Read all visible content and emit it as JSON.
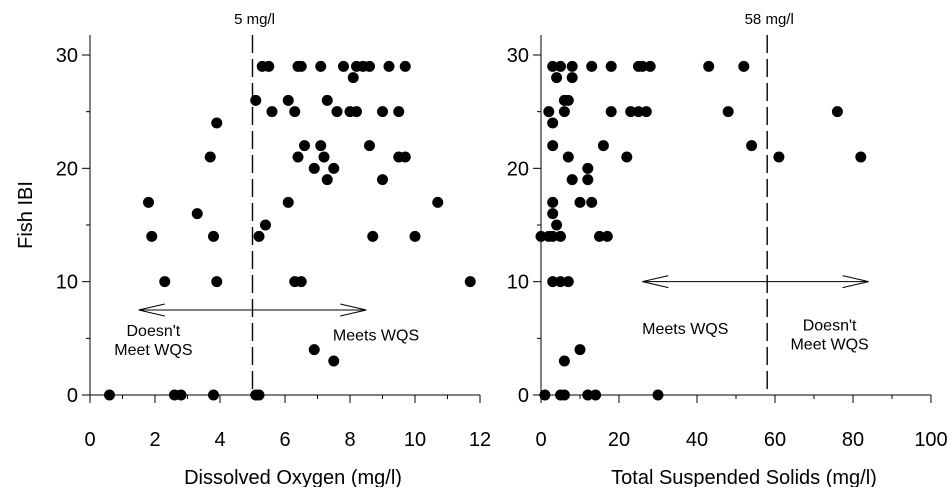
{
  "chart_data": [
    {
      "type": "scatter",
      "xlabel": "Dissolved Oxygen (mg/l)",
      "ylabel": "Fish IBI",
      "xlim": [
        0,
        12
      ],
      "ylim": [
        0,
        30
      ],
      "xticks": [
        "0",
        "2",
        "4",
        "6",
        "8",
        "10",
        "12"
      ],
      "yticks": [
        "0",
        "10",
        "20",
        "30"
      ],
      "threshold": {
        "x": 5,
        "label": "5 mg/l"
      },
      "arrow": {
        "from": 1.5,
        "to": 8.5,
        "y": 7.5
      },
      "annotations": [
        {
          "lines": [
            "Doesn't",
            "Meet WQS"
          ],
          "x": 1.95,
          "y": 5.2
        },
        {
          "lines": [
            "Meets WQS"
          ],
          "x": 8.8,
          "y": 4.8
        }
      ],
      "points": [
        [
          0.6,
          0
        ],
        [
          2.6,
          0
        ],
        [
          2.8,
          0
        ],
        [
          3.8,
          0
        ],
        [
          5.1,
          0
        ],
        [
          5.2,
          0
        ],
        [
          6.9,
          4
        ],
        [
          7.5,
          3
        ],
        [
          2.3,
          10
        ],
        [
          3.9,
          10
        ],
        [
          6.3,
          10
        ],
        [
          6.5,
          10
        ],
        [
          11.7,
          10
        ],
        [
          1.9,
          14
        ],
        [
          3.8,
          14
        ],
        [
          5.2,
          14
        ],
        [
          8.7,
          14
        ],
        [
          10.0,
          14
        ],
        [
          5.4,
          15
        ],
        [
          3.3,
          16
        ],
        [
          1.8,
          17
        ],
        [
          6.1,
          17
        ],
        [
          10.7,
          17
        ],
        [
          7.3,
          19
        ],
        [
          9.0,
          19
        ],
        [
          6.9,
          20
        ],
        [
          7.5,
          20
        ],
        [
          3.7,
          21
        ],
        [
          6.4,
          21
        ],
        [
          7.2,
          21
        ],
        [
          9.5,
          21
        ],
        [
          9.7,
          21
        ],
        [
          6.6,
          22
        ],
        [
          7.1,
          22
        ],
        [
          8.6,
          22
        ],
        [
          3.9,
          24
        ],
        [
          5.6,
          25
        ],
        [
          6.3,
          25
        ],
        [
          7.6,
          25
        ],
        [
          8.0,
          25
        ],
        [
          8.2,
          25
        ],
        [
          9.0,
          25
        ],
        [
          9.5,
          25
        ],
        [
          5.1,
          26
        ],
        [
          6.1,
          26
        ],
        [
          7.3,
          26
        ],
        [
          8.1,
          28
        ],
        [
          5.3,
          29
        ],
        [
          5.5,
          29
        ],
        [
          6.4,
          29
        ],
        [
          6.5,
          29
        ],
        [
          7.1,
          29
        ],
        [
          7.8,
          29
        ],
        [
          8.2,
          29
        ],
        [
          8.4,
          29
        ],
        [
          8.6,
          29
        ],
        [
          9.2,
          29
        ],
        [
          9.7,
          29
        ]
      ]
    },
    {
      "type": "scatter",
      "xlabel": "Total Suspended Solids (mg/l)",
      "ylabel": "",
      "xlim": [
        0,
        100
      ],
      "ylim": [
        0,
        30
      ],
      "xticks": [
        "0",
        "20",
        "40",
        "60",
        "80",
        "100"
      ],
      "yticks": [
        "0",
        "10",
        "20",
        "30"
      ],
      "threshold": {
        "x": 58,
        "label": "58 mg/l"
      },
      "arrow": {
        "from": 26,
        "to": 84,
        "y": 10
      },
      "annotations": [
        {
          "lines": [
            "Meets WQS"
          ],
          "x": 37,
          "y": 5.4
        },
        {
          "lines": [
            "Doesn't",
            "Meet WQS"
          ],
          "x": 74,
          "y": 5.7
        }
      ],
      "points": [
        [
          1,
          0
        ],
        [
          5,
          0
        ],
        [
          6,
          0
        ],
        [
          12,
          0
        ],
        [
          14,
          0
        ],
        [
          30,
          0
        ],
        [
          6,
          3
        ],
        [
          10,
          4
        ],
        [
          3,
          10
        ],
        [
          5,
          10
        ],
        [
          7,
          10
        ],
        [
          0,
          14
        ],
        [
          2,
          14
        ],
        [
          3,
          14
        ],
        [
          5,
          14
        ],
        [
          15,
          14
        ],
        [
          17,
          14
        ],
        [
          4,
          15
        ],
        [
          3,
          16
        ],
        [
          3,
          17
        ],
        [
          10,
          17
        ],
        [
          13,
          17
        ],
        [
          8,
          19
        ],
        [
          12,
          19
        ],
        [
          12,
          20
        ],
        [
          7,
          21
        ],
        [
          22,
          21
        ],
        [
          3,
          22
        ],
        [
          16,
          22
        ],
        [
          3,
          24
        ],
        [
          2,
          25
        ],
        [
          6,
          25
        ],
        [
          18,
          25
        ],
        [
          23,
          25
        ],
        [
          25,
          25
        ],
        [
          27,
          25
        ],
        [
          48,
          25
        ],
        [
          76,
          25
        ],
        [
          6,
          26
        ],
        [
          7,
          26
        ],
        [
          4,
          28
        ],
        [
          8,
          28
        ],
        [
          3,
          29
        ],
        [
          5,
          29
        ],
        [
          8,
          29
        ],
        [
          13,
          29
        ],
        [
          18,
          29
        ],
        [
          25,
          29
        ],
        [
          26,
          29
        ],
        [
          28,
          29
        ],
        [
          43,
          29
        ],
        [
          52,
          29
        ],
        [
          54,
          22
        ],
        [
          61,
          21
        ],
        [
          82,
          21
        ]
      ]
    }
  ]
}
